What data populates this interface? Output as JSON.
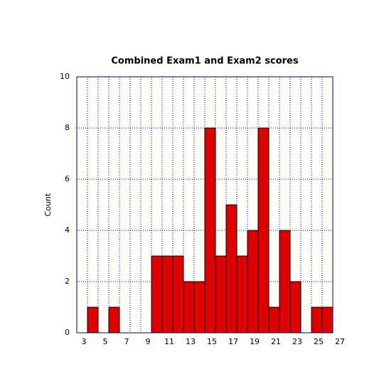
{
  "chart_data": {
    "type": "histogram",
    "title": "Combined Exam1 and Exam2 scores",
    "ylabel": "Count",
    "bins": [
      3,
      4,
      5,
      6,
      7,
      8,
      9,
      10,
      11,
      12,
      13,
      14,
      15,
      16,
      17,
      18,
      19,
      20,
      21,
      22,
      23,
      24,
      25,
      26,
      27
    ],
    "values": [
      0,
      1,
      0,
      1,
      0,
      0,
      0,
      3,
      3,
      3,
      2,
      2,
      8,
      3,
      5,
      3,
      4,
      8,
      1,
      4,
      2,
      0,
      1,
      1
    ],
    "color": "#dd0000",
    "xlim": [
      3,
      27
    ],
    "xticks": [
      3,
      5,
      7,
      9,
      11,
      13,
      15,
      17,
      19,
      21,
      23,
      25,
      27
    ],
    "ylim": [
      0,
      10
    ],
    "yticks": [
      0,
      2,
      4,
      6,
      8,
      10
    ],
    "grid": true
  }
}
